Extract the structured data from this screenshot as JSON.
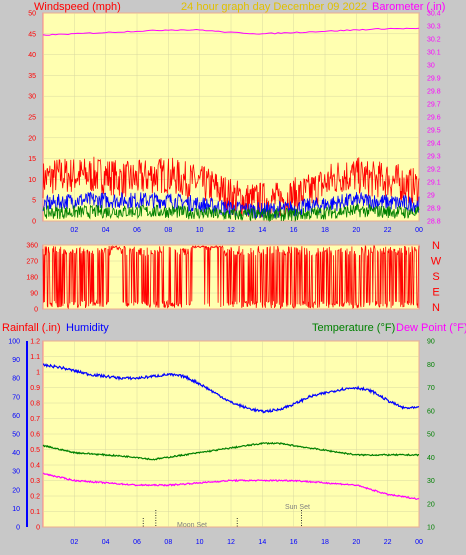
{
  "chart_data": [
    {
      "id": "wind_baro",
      "type": "line",
      "header": {
        "left": "Windspeed (mph)",
        "center": "24 hour graph day   December 09 2022",
        "right": "Barometer (.in)"
      },
      "x_ticks": [
        "02",
        "04",
        "06",
        "08",
        "10",
        "12",
        "14",
        "16",
        "18",
        "20",
        "22",
        "00"
      ],
      "y_left": {
        "min": 0,
        "max": 50,
        "ticks": [
          0,
          5,
          10,
          15,
          20,
          25,
          30,
          35,
          40,
          45,
          50
        ]
      },
      "y_right": {
        "min": 28.8,
        "max": 30.4,
        "ticks": [
          "28.8",
          "28.9",
          "29",
          "29.1",
          "29.2",
          "29.3",
          "29.4",
          "29.5",
          "29.6",
          "29.7",
          "29.8",
          "29.9",
          "30",
          "30.1",
          "30.2",
          "30.3",
          "30.4"
        ]
      },
      "series": [
        {
          "role": "gust",
          "color": "#ff0000",
          "axis": "left",
          "points": [
            [
              0,
              10
            ],
            [
              1,
              11
            ],
            [
              2,
              11
            ],
            [
              3,
              11
            ],
            [
              4,
              11
            ],
            [
              5,
              10
            ],
            [
              6,
              10
            ],
            [
              7,
              11
            ],
            [
              8,
              11
            ],
            [
              9,
              10
            ],
            [
              10,
              9
            ],
            [
              11,
              8
            ],
            [
              12,
              6
            ],
            [
              13,
              5
            ],
            [
              14,
              5
            ],
            [
              15,
              5
            ],
            [
              16,
              6
            ],
            [
              17,
              7
            ],
            [
              18,
              9
            ],
            [
              19,
              11
            ],
            [
              20,
              11
            ],
            [
              21,
              10
            ],
            [
              22,
              10
            ],
            [
              23,
              9
            ],
            [
              24,
              8
            ]
          ],
          "spread": 4.5
        },
        {
          "role": "speed",
          "color": "#0000ff",
          "axis": "left",
          "points": [
            [
              0,
              4
            ],
            [
              2,
              5
            ],
            [
              4,
              5
            ],
            [
              6,
              5
            ],
            [
              8,
              5
            ],
            [
              10,
              4
            ],
            [
              12,
              3
            ],
            [
              14,
              2.5
            ],
            [
              16,
              3
            ],
            [
              18,
              4
            ],
            [
              20,
              5
            ],
            [
              22,
              4.5
            ],
            [
              24,
              4
            ]
          ],
          "spread": 2
        },
        {
          "role": "average",
          "color": "#008000",
          "axis": "left",
          "points": [
            [
              0,
              2
            ],
            [
              4,
              2.3
            ],
            [
              8,
              2.3
            ],
            [
              12,
              1.5
            ],
            [
              16,
              1.5
            ],
            [
              20,
              2.5
            ],
            [
              24,
              2
            ]
          ],
          "spread": 1.6
        },
        {
          "role": "barometer",
          "color": "#ff00ff",
          "axis": "right",
          "points": [
            [
              0,
              30.23
            ],
            [
              2,
              30.24
            ],
            [
              4,
              30.25
            ],
            [
              6,
              30.26
            ],
            [
              8,
              30.27
            ],
            [
              10,
              30.27
            ],
            [
              12,
              30.25
            ],
            [
              14,
              30.24
            ],
            [
              16,
              30.25
            ],
            [
              18,
              30.26
            ],
            [
              20,
              30.27
            ],
            [
              22,
              30.28
            ],
            [
              24,
              30.28
            ]
          ]
        }
      ]
    },
    {
      "id": "wind_dir",
      "type": "scatter",
      "y_left": {
        "min": 0,
        "max": 360,
        "ticks": [
          0,
          90,
          180,
          270,
          360
        ]
      },
      "compass": [
        "N",
        "W",
        "S",
        "E",
        "N"
      ],
      "series": [
        {
          "role": "direction",
          "color": "#ff0000",
          "segments": [
            [
              0,
              4.3,
              "mixed"
            ],
            [
              4.3,
              5,
              "north"
            ],
            [
              5,
              9.5,
              "mixed"
            ],
            [
              9.5,
              11.5,
              "sparse"
            ],
            [
              11.5,
              19,
              "mixed"
            ],
            [
              19,
              24,
              "mixed"
            ]
          ]
        }
      ]
    },
    {
      "id": "rain_hum_temp",
      "type": "line",
      "header": {
        "left_a": "Rainfall (.in)",
        "left_b": "Humidity",
        "right_a": "Temperature (°F)",
        "right_b": "Dew Point (°F)"
      },
      "x_ticks": [
        "02",
        "04",
        "06",
        "08",
        "10",
        "12",
        "14",
        "16",
        "18",
        "20",
        "22",
        "00"
      ],
      "y_rain": {
        "min": 0,
        "max": 1.2,
        "ticks": [
          "0",
          "0.1",
          "0.2",
          "0.3",
          "0.4",
          "0.5",
          "0.6",
          "0.7",
          "0.8",
          "0.9",
          "1",
          "1.1",
          "1.2"
        ]
      },
      "y_humidity": {
        "min": 0,
        "max": 100,
        "ticks": [
          0,
          10,
          20,
          30,
          40,
          50,
          60,
          70,
          80,
          90,
          100
        ]
      },
      "y_temp": {
        "min": 10,
        "max": 90,
        "ticks": [
          10,
          20,
          30,
          40,
          50,
          60,
          70,
          80,
          90
        ]
      },
      "series": [
        {
          "role": "humidity",
          "color": "#0000ff",
          "axis": "humidity",
          "points": [
            [
              0,
              87
            ],
            [
              1,
              86
            ],
            [
              2,
              84
            ],
            [
              3,
              82
            ],
            [
              4,
              81
            ],
            [
              5,
              80
            ],
            [
              6,
              80
            ],
            [
              7,
              81
            ],
            [
              8,
              82
            ],
            [
              9,
              81
            ],
            [
              10,
              77
            ],
            [
              11,
              72
            ],
            [
              12,
              67
            ],
            [
              13,
              64
            ],
            [
              14,
              62
            ],
            [
              15,
              63
            ],
            [
              16,
              66
            ],
            [
              17,
              70
            ],
            [
              18,
              72
            ],
            [
              19,
              74
            ],
            [
              20,
              75
            ],
            [
              21,
              73
            ],
            [
              22,
              68
            ],
            [
              23,
              64
            ],
            [
              24,
              64
            ]
          ]
        },
        {
          "role": "temperature",
          "color": "#008000",
          "axis": "temp",
          "points": [
            [
              0,
              45
            ],
            [
              2,
              42
            ],
            [
              4,
              41
            ],
            [
              6,
              40
            ],
            [
              7,
              39
            ],
            [
              8,
              40
            ],
            [
              10,
              42
            ],
            [
              12,
              44
            ],
            [
              14,
              46
            ],
            [
              15,
              46
            ],
            [
              16,
              45
            ],
            [
              18,
              43
            ],
            [
              20,
              41
            ],
            [
              22,
              41
            ],
            [
              24,
              41
            ]
          ]
        },
        {
          "role": "dew_point",
          "color": "#ff00ff",
          "axis": "temp",
          "points": [
            [
              0,
              33
            ],
            [
              2,
              30
            ],
            [
              4,
              29
            ],
            [
              6,
              28
            ],
            [
              8,
              28
            ],
            [
              10,
              29
            ],
            [
              12,
              30
            ],
            [
              14,
              30
            ],
            [
              16,
              30
            ],
            [
              18,
              29
            ],
            [
              20,
              28
            ],
            [
              22,
              24
            ],
            [
              24,
              22
            ]
          ]
        }
      ],
      "annotations": {
        "moon_set": {
          "label": "Moon Set",
          "hour": 7.2
        },
        "sun_set": {
          "label": "Sun Set",
          "hour": 16.5
        },
        "extra_markers": [
          6.4,
          12.4
        ]
      }
    }
  ]
}
